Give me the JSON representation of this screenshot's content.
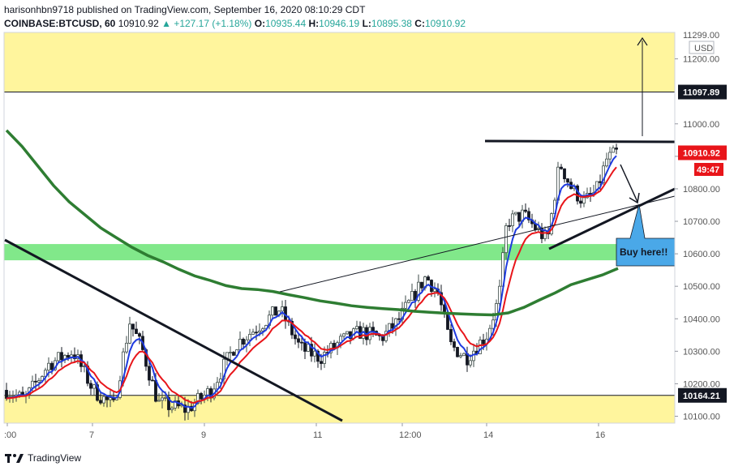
{
  "header": {
    "publisher": "harisonhbn9718 published on TradingView.com, September 16, 2020 08:10:29 CDT",
    "symbol": "COINBASE:BTCUSD, 60",
    "last": "10910.92",
    "change": "▲ +127.17 (+1.18%)",
    "o_label": "O:",
    "o": "10935.44",
    "h_label": "H:",
    "h": "10946.19",
    "l_label": "L:",
    "l": "10895.38",
    "c_label": "C:",
    "c": "10910.92"
  },
  "axis": {
    "currency": "USD",
    "price_ticks": [
      "11200.00",
      "11000.00",
      "10900.00",
      "10800.00",
      "10700.00",
      "10600.00",
      "10500.00",
      "10400.00",
      "10300.00",
      "10200.00",
      "10100.00"
    ],
    "time_ticks": [
      ":00",
      "7",
      "9",
      "11",
      "12:00",
      "14",
      "16"
    ],
    "top_cut_label": "11299.00"
  },
  "badges": {
    "resistance": "11097.89",
    "last_price": "10910.92",
    "countdown": "49:47",
    "support": "10164.21"
  },
  "annotation": {
    "buy": "Buy here!!"
  },
  "footer": {
    "brand": "TradingView"
  },
  "colors": {
    "zone_yellow": "#fff59d",
    "zone_green": "#81e88a",
    "ma_long": "#2e7d32",
    "ma_fast": "#1e3adf",
    "ma_mid": "#e8151a",
    "bull": "#3d4b48",
    "bear": "#131722",
    "badge_dark": "#131722",
    "badge_red": "#e8151a",
    "callout": "#4aa8e8"
  },
  "chart_data": {
    "type": "candlestick",
    "ylim": [
      10075,
      11300
    ],
    "x_ticks": [
      ":00",
      "7",
      "9",
      "11",
      "12:00",
      "14",
      "16"
    ],
    "levels": {
      "resistance": 11097.89,
      "support": 10164.21,
      "last": 10910.92
    },
    "zones": [
      {
        "from": 11097.89,
        "to": 11300,
        "color": "yellow"
      },
      {
        "from": 10580,
        "to": 10630,
        "color": "green"
      },
      {
        "from": 10075,
        "to": 10164.21,
        "color": "yellow"
      }
    ],
    "ma_long_path": [
      10980,
      10930,
      10870,
      10810,
      10760,
      10720,
      10680,
      10650,
      10620,
      10595,
      10575,
      10552,
      10532,
      10518,
      10502,
      10493,
      10490,
      10484,
      10474,
      10465,
      10455,
      10448,
      10440,
      10435,
      10431,
      10428,
      10423,
      10420,
      10417,
      10415,
      10413,
      10412,
      10418,
      10435,
      10458,
      10480,
      10505,
      10520,
      10535,
      10555
    ]
  }
}
